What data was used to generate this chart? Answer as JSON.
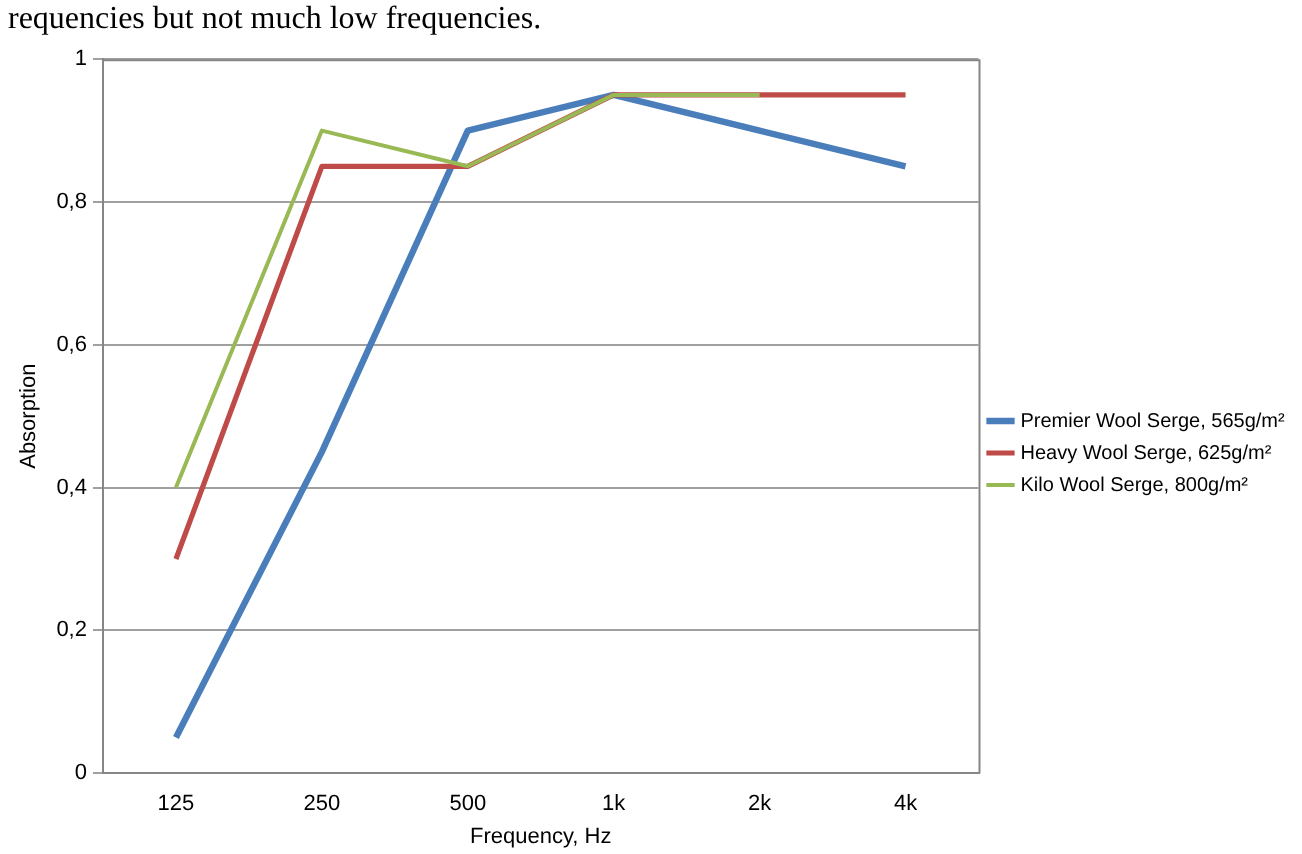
{
  "chart_data": {
    "type": "line",
    "annotations": [
      "requencies but not much low frequencies."
    ],
    "xlabel": "Frequency, Hz",
    "ylabel": "Absorption",
    "categories": [
      "125",
      "250",
      "500",
      "1k",
      "2k",
      "4k"
    ],
    "series": [
      {
        "name": "Premier Wool Serge, 565g/m²",
        "color": "#4a7ebb",
        "values": [
          0.05,
          0.45,
          0.9,
          0.95,
          0.9,
          0.85
        ]
      },
      {
        "name": "Heavy Wool Serge, 625g/m²",
        "color": "#be4b48",
        "values": [
          0.3,
          0.85,
          0.85,
          0.95,
          0.95,
          0.95
        ]
      },
      {
        "name": "Kilo Wool Serge, 800g/m²",
        "color": "#98b954",
        "values": [
          0.4,
          0.9,
          0.85,
          0.95,
          0.95,
          null
        ]
      }
    ],
    "ylim": [
      0,
      1
    ],
    "yticks": [
      {
        "value": 0,
        "label": "0"
      },
      {
        "value": 0.2,
        "label": "0,2"
      },
      {
        "value": 0.4,
        "label": "0,4"
      },
      {
        "value": 0.6,
        "label": "0,6"
      },
      {
        "value": 0.8,
        "label": "0,8"
      },
      {
        "value": 1,
        "label": "1"
      }
    ],
    "grid": "y",
    "legend": "right",
    "marker": "none",
    "line_style": "solid"
  }
}
